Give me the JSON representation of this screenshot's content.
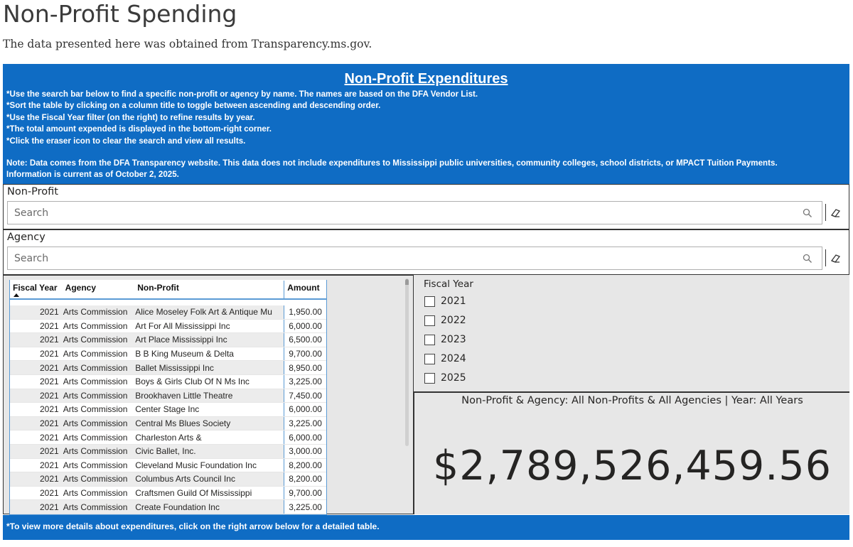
{
  "header": {
    "title": "Non-Profit Spending",
    "subtitle": "The data presented here was obtained from Transparency.ms.gov."
  },
  "info_panel": {
    "title": "Non-Profit Expenditures",
    "instructions": [
      "*Use the search bar below to find a specific non-profit or agency by name. The names are based on the DFA Vendor List.",
      "*Sort the table by clicking on a column title to toggle between ascending and descending order.",
      "*Use the Fiscal Year filter (on the right) to refine results by year.",
      "*The total amount expended is displayed in the bottom-right corner.",
      "*Click the eraser icon to clear the search and view all results."
    ],
    "note_line1": "Note: Data comes from the DFA Transparency website. This data does not include expenditures to Mississippi public universities, community colleges, school districts, or MPACT Tuition Payments.",
    "note_line2": "Information is current as of October 2, 2025.",
    "bg_color": "#0f6cc4"
  },
  "filters": {
    "nonprofit": {
      "label": "Non-Profit",
      "placeholder": "Search",
      "value": ""
    },
    "agency": {
      "label": "Agency",
      "placeholder": "Search",
      "value": ""
    },
    "search_icon": "search-icon",
    "clear_icon": "eraser-icon"
  },
  "table": {
    "columns": [
      "Fiscal Year",
      "Agency",
      "Non-Profit",
      "Amount"
    ],
    "sorted_column": "Fiscal Year",
    "sort_direction": "ascending",
    "rows": [
      [
        "2021",
        "Arts Commission",
        "Alice Moseley Folk Art & Antique Mu",
        "1,950.00"
      ],
      [
        "2021",
        "Arts Commission",
        "Art For All Mississippi Inc",
        "6,000.00"
      ],
      [
        "2021",
        "Arts Commission",
        "Art Place Mississippi Inc",
        "6,500.00"
      ],
      [
        "2021",
        "Arts Commission",
        "B B King Museum & Delta",
        "9,700.00"
      ],
      [
        "2021",
        "Arts Commission",
        "Ballet Mississippi Inc",
        "8,950.00"
      ],
      [
        "2021",
        "Arts Commission",
        "Boys & Girls Club Of N Ms Inc",
        "3,225.00"
      ],
      [
        "2021",
        "Arts Commission",
        "Brookhaven Little Theatre",
        "7,450.00"
      ],
      [
        "2021",
        "Arts Commission",
        "Center Stage Inc",
        "6,000.00"
      ],
      [
        "2021",
        "Arts Commission",
        "Central Ms Blues Society",
        "3,225.00"
      ],
      [
        "2021",
        "Arts Commission",
        "Charleston Arts &",
        "6,000.00"
      ],
      [
        "2021",
        "Arts Commission",
        "Civic Ballet, Inc.",
        "3,000.00"
      ],
      [
        "2021",
        "Arts Commission",
        "Cleveland Music Foundation Inc",
        "8,200.00"
      ],
      [
        "2021",
        "Arts Commission",
        "Columbus Arts Council Inc",
        "8,200.00"
      ],
      [
        "2021",
        "Arts Commission",
        "Craftsmen Guild Of Mississippi",
        "9,700.00"
      ],
      [
        "2021",
        "Arts Commission",
        "Create Foundation Inc",
        "3,225.00"
      ]
    ]
  },
  "fiscal_year_filter": {
    "title": "Fiscal Year",
    "options": [
      {
        "label": "2021",
        "checked": false
      },
      {
        "label": "2022",
        "checked": false
      },
      {
        "label": "2023",
        "checked": false
      },
      {
        "label": "2024",
        "checked": false
      },
      {
        "label": "2025",
        "checked": false
      }
    ]
  },
  "kpi": {
    "label": "Non-Profit & Agency: All Non-Profits & All Agencies | Year: All Years",
    "value": "$2,789,526,459.56"
  },
  "footer": {
    "text": "*To view more details about expenditures, click on the right arrow below for a detailed table."
  }
}
